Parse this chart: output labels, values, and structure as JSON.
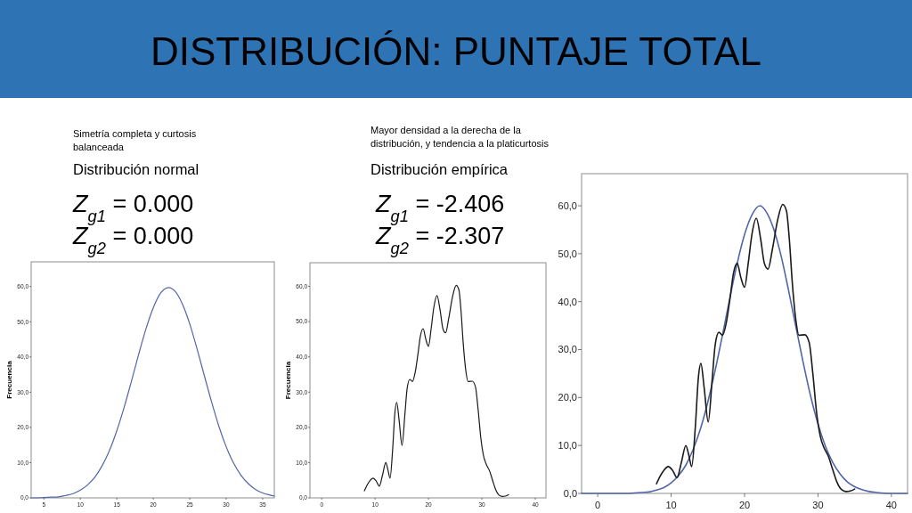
{
  "chart_data": [
    {
      "type": "line",
      "title": "DISTRIBUCIÓN: PUNTAJE TOTAL",
      "subtitle": "Distribución normal",
      "annotations": [
        "Simetría completa y curtosis balanceada",
        "Z$_{g1}$ = 0.000",
        "Z$_{g2}$ = 0.000"
      ],
      "ylabel": "Frecuencia",
      "series": [
        {
          "color": "#5266a8",
          "x": [
            3.25,
            4,
            5,
            6,
            7,
            8,
            9,
            10,
            11,
            12,
            13,
            14,
            15,
            16,
            17,
            18,
            19,
            20,
            21,
            22.1,
            23,
            24,
            25,
            26,
            27,
            28,
            29,
            30,
            31,
            32,
            33,
            34,
            35,
            36,
            36.6
          ],
          "values": [
            0.0,
            0.0,
            0.1,
            0.2,
            0.3,
            0.7,
            1.2,
            2.2,
            3.7,
            5.9,
            9.2,
            13.5,
            19.1,
            25.7,
            33.1,
            40.8,
            48.0,
            54.0,
            58.1,
            59.7,
            58.6,
            55.0,
            49.4,
            42.3,
            34.7,
            27.2,
            20.3,
            14.5,
            9.9,
            6.5,
            4.1,
            2.4,
            1.4,
            0.8,
            0.5
          ]
        }
      ],
      "xlim": [
        3.25,
        36.6
      ],
      "xticks": [
        5,
        10,
        15,
        20,
        25,
        30,
        35
      ],
      "ylim": [
        0,
        67
      ],
      "yticks": [
        {
          "value": 0,
          "label": "0,0"
        },
        {
          "value": 10,
          "label": "10,0"
        },
        {
          "value": 20,
          "label": "20,0"
        },
        {
          "value": 30,
          "label": "30,0"
        },
        {
          "value": 40,
          "label": "40,0"
        },
        {
          "value": 50,
          "label": "50,0"
        },
        {
          "value": 60,
          "label": "60,0"
        }
      ]
    },
    {
      "type": "line",
      "subtitle": "Distribución empírica",
      "annotations": [
        "Mayor densidad a la derecha de la distribución, y tendencia a la platicurtosis",
        "Z$_{g1}$ = -2.406",
        "Z$_{g2}$ = -2.307"
      ],
      "ylabel": "Frecuencia",
      "series": [
        {
          "color": "#1a1a1a",
          "x": [
            8.0,
            8.5,
            9.0,
            9.6,
            10.2,
            10.8,
            11.4,
            12.0,
            12.4,
            12.8,
            13.3,
            13.7,
            14.05,
            14.5,
            15.05,
            15.6,
            16.0,
            16.5,
            17.0,
            17.5,
            18.0,
            18.5,
            19.0,
            19.5,
            20.0,
            20.5,
            21.0,
            21.6,
            22.2,
            22.7,
            23.2,
            23.8,
            24.5,
            25.2,
            25.7,
            26.1,
            26.5,
            27.0,
            27.4,
            28.2,
            28.8,
            29.3,
            29.8,
            30.3,
            30.8,
            31.4,
            32.0,
            32.6,
            33.2,
            33.8,
            34.4,
            35.0
          ],
          "values": [
            2.0,
            3.6,
            4.8,
            5.6,
            4.8,
            3.3,
            6.5,
            10.0,
            8.0,
            5.6,
            14.0,
            24.0,
            27.1,
            22.0,
            14.9,
            24.0,
            31.0,
            33.6,
            33.0,
            35.5,
            40.5,
            46.0,
            48.0,
            45.0,
            43.0,
            48.0,
            54.0,
            57.4,
            53.0,
            48.0,
            46.8,
            51.0,
            57.0,
            60.3,
            59.0,
            53.0,
            44.0,
            36.0,
            33.0,
            33.1,
            31.5,
            25.0,
            17.0,
            12.0,
            9.6,
            7.8,
            5.0,
            2.3,
            0.8,
            0.4,
            0.5,
            0.9
          ]
        }
      ],
      "xlim": [
        -2.2,
        42
      ],
      "xticks": [
        0,
        10,
        20,
        30,
        40
      ],
      "ylim": [
        0,
        66.7
      ],
      "yticks": [
        {
          "value": 0,
          "label": "0,0"
        },
        {
          "value": 10,
          "label": "10,0"
        },
        {
          "value": 20,
          "label": "20,0"
        },
        {
          "value": 30,
          "label": "30,0"
        },
        {
          "value": 40,
          "label": "40,0"
        },
        {
          "value": 50,
          "label": "50,0"
        },
        {
          "value": 60,
          "label": "60,0"
        }
      ]
    },
    {
      "type": "line",
      "series": [
        {
          "color": "#5266a8",
          "x": [
            -2.2,
            0,
            2,
            4,
            5,
            6,
            7,
            8,
            9,
            10,
            11,
            12,
            13,
            14,
            15,
            16,
            17,
            18,
            19,
            20,
            21,
            22.1,
            23,
            24,
            25,
            26,
            27,
            28,
            29,
            30,
            31,
            32,
            33,
            34,
            35,
            36,
            37,
            38,
            40,
            42.2
          ],
          "values": [
            0.0,
            0.0,
            0.0,
            0.0,
            0.1,
            0.2,
            0.3,
            0.7,
            1.2,
            2.2,
            3.7,
            5.9,
            9.2,
            13.5,
            19.1,
            25.7,
            33.1,
            40.8,
            48.0,
            54.0,
            58.1,
            60.0,
            58.6,
            55.0,
            49.4,
            42.3,
            34.7,
            27.2,
            20.3,
            14.5,
            9.9,
            6.5,
            4.1,
            2.4,
            1.4,
            0.8,
            0.4,
            0.2,
            0.0,
            0.0
          ]
        },
        {
          "color": "#1a1a1a",
          "x": [
            8.0,
            8.5,
            9.0,
            9.6,
            10.2,
            10.8,
            11.4,
            12.0,
            12.4,
            12.8,
            13.3,
            13.7,
            14.05,
            14.5,
            15.05,
            15.6,
            16.0,
            16.5,
            17.0,
            17.5,
            18.0,
            18.5,
            19.0,
            19.5,
            20.0,
            20.5,
            21.0,
            21.6,
            22.2,
            22.7,
            23.2,
            23.8,
            24.5,
            25.2,
            25.7,
            26.1,
            26.5,
            27.0,
            27.4,
            28.2,
            28.8,
            29.3,
            29.8,
            30.3,
            30.8,
            31.4,
            32.0,
            32.6,
            33.2,
            33.8,
            34.4,
            35.0
          ],
          "values": [
            2.0,
            3.6,
            4.8,
            5.6,
            4.8,
            3.3,
            6.5,
            10.0,
            8.0,
            5.6,
            14.0,
            24.0,
            27.1,
            22.0,
            14.9,
            24.0,
            31.0,
            33.6,
            33.0,
            35.5,
            40.5,
            46.0,
            48.0,
            45.0,
            43.0,
            48.0,
            54.0,
            57.4,
            53.0,
            48.0,
            46.8,
            51.0,
            57.0,
            60.3,
            59.0,
            53.0,
            44.0,
            36.0,
            33.0,
            33.1,
            31.5,
            25.0,
            17.0,
            12.0,
            9.6,
            7.8,
            5.0,
            2.3,
            0.8,
            0.4,
            0.5,
            0.9
          ]
        }
      ],
      "xlim": [
        -2.2,
        42.2
      ],
      "xticks": [
        0,
        10,
        20,
        30,
        40
      ],
      "ylim": [
        0,
        66.7
      ],
      "yticks": [
        {
          "value": 0,
          "label": "0,0"
        },
        {
          "value": 10,
          "label": "10,0"
        },
        {
          "value": 20,
          "label": "20,0"
        },
        {
          "value": 30,
          "label": "30,0"
        },
        {
          "value": 40,
          "label": "40,0"
        },
        {
          "value": 50,
          "label": "50,0"
        },
        {
          "value": 60,
          "label": "60,0"
        }
      ]
    }
  ]
}
